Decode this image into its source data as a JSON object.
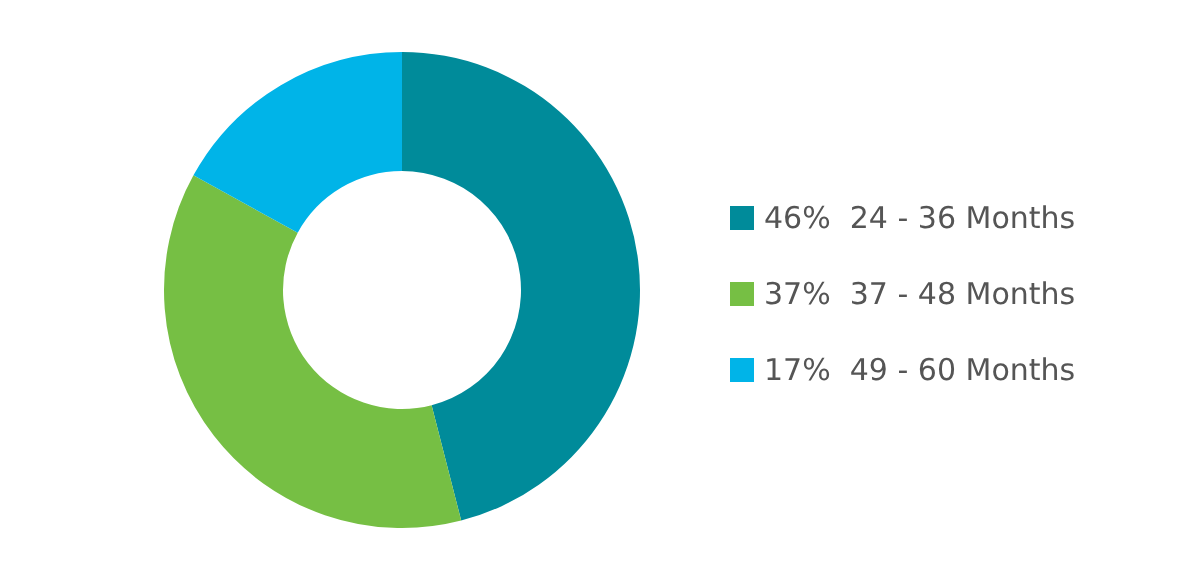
{
  "chart_data": {
    "type": "donut",
    "categories": [
      "24 - 36 Months",
      "37 - 48 Months",
      "49 - 60 Months"
    ],
    "values": [
      46,
      37,
      17
    ],
    "value_labels": [
      "46%",
      "37%",
      "17%"
    ],
    "colors": [
      "#008b9a",
      "#76bf44",
      "#00b4e8"
    ],
    "legend": "right"
  }
}
